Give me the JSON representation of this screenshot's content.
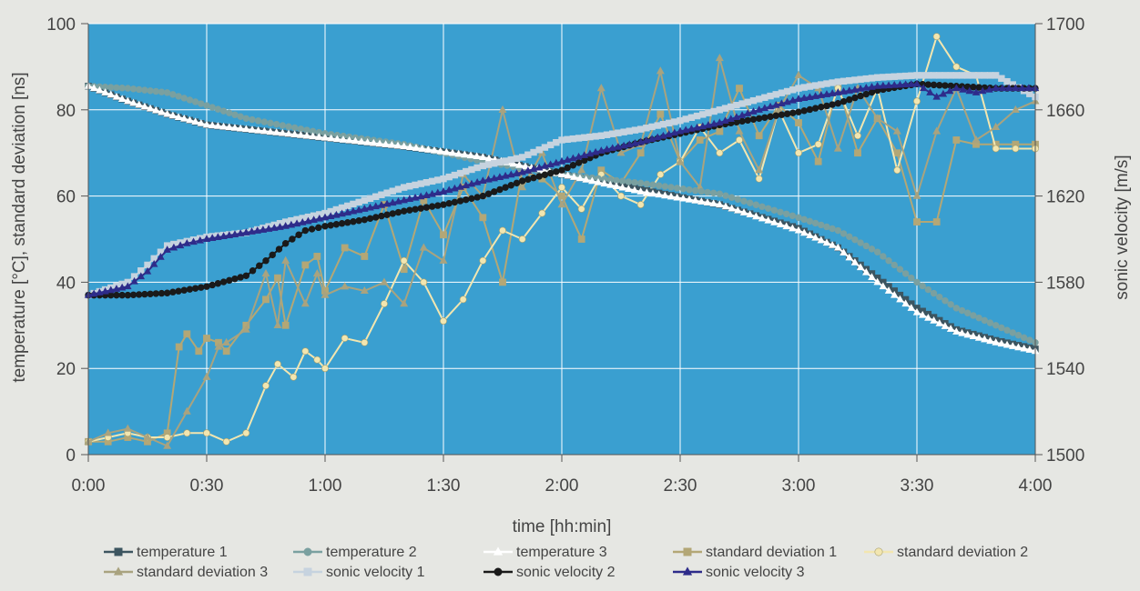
{
  "chart_data": {
    "type": "line",
    "xlabel": "time [hh:min]",
    "ylabel_left": "temperature [°C], standard deviation [ns]",
    "ylabel_right": "sonic velocity [m/s]",
    "x_ticks": [
      "0:00",
      "0:30",
      "1:00",
      "1:30",
      "2:00",
      "2:30",
      "3:00",
      "3:30",
      "4:00"
    ],
    "x_range_minutes": [
      0,
      240
    ],
    "ylim_left": [
      0,
      100
    ],
    "y_ticks_left": [
      0,
      20,
      40,
      60,
      80,
      100
    ],
    "ylim_right": [
      1500,
      1700
    ],
    "y_ticks_right": [
      1500,
      1540,
      1580,
      1620,
      1660,
      1700
    ],
    "grid": true,
    "plot_background": "#3a9fd0",
    "legend_position": "bottom",
    "series": [
      {
        "name": "temperature 1",
        "axis": "left",
        "color": "#3d5560",
        "marker": "square",
        "x": [
          0,
          10,
          20,
          30,
          40,
          60,
          80,
          100,
          120,
          140,
          160,
          180,
          190,
          200,
          210,
          220,
          230,
          240
        ],
        "y": [
          85.5,
          82,
          79,
          76.5,
          75.5,
          73.5,
          71.5,
          69,
          65,
          61.5,
          58,
          52.5,
          48,
          41,
          34,
          29,
          26.5,
          24.5
        ]
      },
      {
        "name": "temperature 2",
        "axis": "left",
        "color": "#7aa0a0",
        "marker": "circle",
        "x": [
          0,
          10,
          20,
          30,
          40,
          60,
          80,
          100,
          120,
          140,
          160,
          180,
          190,
          200,
          210,
          220,
          230,
          240
        ],
        "y": [
          85.5,
          85,
          84,
          81,
          78,
          74.5,
          72,
          68,
          65,
          63,
          60.5,
          55,
          52,
          47,
          40,
          34,
          30,
          26
        ]
      },
      {
        "name": "temperature 3",
        "axis": "left",
        "color": "#ffffff",
        "marker": "triangle",
        "x": [
          0,
          10,
          20,
          30,
          40,
          60,
          80,
          100,
          120,
          140,
          160,
          180,
          190,
          200,
          210,
          220,
          230,
          240
        ],
        "y": [
          85.5,
          82,
          79,
          76.5,
          75.5,
          73.5,
          71.5,
          69,
          65,
          61,
          58,
          52,
          48,
          40,
          33,
          28.5,
          26,
          24
        ]
      },
      {
        "name": "standard deviation 1",
        "axis": "left",
        "color": "#b3a776",
        "marker": "square",
        "x": [
          0,
          5,
          10,
          15,
          20,
          23,
          25,
          28,
          30,
          33,
          35,
          40,
          45,
          48,
          50,
          55,
          58,
          60,
          65,
          70,
          75,
          80,
          85,
          90,
          95,
          100,
          105,
          110,
          115,
          120,
          125,
          130,
          135,
          140,
          145,
          150,
          155,
          160,
          165,
          170,
          175,
          180,
          185,
          190,
          195,
          200,
          205,
          210,
          215,
          220,
          225,
          230,
          235,
          240
        ],
        "y": [
          3,
          3,
          4,
          3,
          5,
          25,
          28,
          24,
          27,
          26,
          24,
          30,
          36,
          41,
          30,
          44,
          46,
          38,
          48,
          46,
          58,
          43,
          59,
          51,
          62,
          55,
          40,
          66,
          64,
          60,
          50,
          66,
          63,
          70,
          79,
          68,
          73,
          75,
          85,
          74,
          81,
          77,
          68,
          86,
          70,
          78,
          70,
          54,
          54,
          73,
          72,
          72,
          72,
          72
        ]
      },
      {
        "name": "standard deviation 2",
        "axis": "left",
        "color": "#f2e6b0",
        "marker": "circle",
        "x": [
          0,
          5,
          10,
          15,
          20,
          25,
          30,
          35,
          40,
          45,
          48,
          52,
          55,
          58,
          60,
          65,
          70,
          75,
          80,
          85,
          90,
          95,
          100,
          105,
          110,
          115,
          120,
          125,
          130,
          135,
          140,
          145,
          150,
          155,
          160,
          165,
          170,
          175,
          180,
          185,
          190,
          195,
          200,
          205,
          210,
          215,
          220,
          225,
          230,
          235,
          240
        ],
        "y": [
          3,
          4,
          5,
          4,
          4,
          5,
          5,
          3,
          5,
          16,
          21,
          18,
          24,
          22,
          20,
          27,
          26,
          35,
          45,
          40,
          31,
          36,
          45,
          52,
          50,
          56,
          62,
          57,
          65,
          60,
          58,
          65,
          68,
          76,
          70,
          73,
          64,
          80,
          70,
          72,
          85,
          74,
          85,
          66,
          82,
          97,
          90,
          88,
          71,
          71,
          71
        ]
      },
      {
        "name": "standard deviation 3",
        "axis": "left",
        "color": "#a9a37f",
        "marker": "triangle",
        "x": [
          0,
          5,
          10,
          15,
          20,
          25,
          30,
          33,
          35,
          40,
          45,
          48,
          50,
          55,
          58,
          60,
          65,
          70,
          75,
          80,
          85,
          90,
          95,
          100,
          105,
          110,
          115,
          120,
          125,
          130,
          135,
          140,
          145,
          150,
          155,
          160,
          165,
          170,
          175,
          180,
          185,
          190,
          195,
          200,
          205,
          210,
          215,
          220,
          225,
          230,
          235,
          240
        ],
        "y": [
          3,
          5,
          6,
          4,
          2,
          10,
          18,
          25,
          26,
          29,
          42,
          30,
          45,
          35,
          42,
          37,
          39,
          38,
          40,
          35,
          48,
          45,
          65,
          60,
          80,
          62,
          70,
          58,
          66,
          85,
          70,
          72,
          89,
          68,
          62,
          92,
          75,
          66,
          80,
          88,
          85,
          71,
          85,
          78,
          75,
          60,
          75,
          85,
          73,
          76,
          80,
          82
        ]
      },
      {
        "name": "sonic velocity 1",
        "axis": "right",
        "color": "#c6d3df",
        "marker": "square",
        "x": [
          0,
          10,
          15,
          20,
          25,
          30,
          40,
          50,
          60,
          70,
          80,
          90,
          100,
          110,
          120,
          130,
          140,
          150,
          160,
          170,
          180,
          190,
          200,
          210,
          220,
          230,
          240
        ],
        "y": [
          1574,
          1580,
          1588,
          1597,
          1599,
          1601,
          1603,
          1608,
          1612,
          1618,
          1624,
          1628,
          1634,
          1638,
          1646,
          1648,
          1651,
          1655,
          1660,
          1665,
          1670,
          1673,
          1675,
          1676,
          1676,
          1676,
          1666
        ]
      },
      {
        "name": "sonic velocity 2",
        "axis": "right",
        "color": "#1a1a1a",
        "marker": "circle",
        "x": [
          0,
          10,
          20,
          30,
          40,
          45,
          50,
          55,
          60,
          70,
          80,
          90,
          100,
          110,
          120,
          130,
          140,
          150,
          160,
          170,
          180,
          190,
          200,
          210,
          220,
          230,
          240
        ],
        "y": [
          1574,
          1574,
          1575,
          1578,
          1583,
          1590,
          1598,
          1604,
          1606,
          1609,
          1613,
          1616,
          1620,
          1627,
          1632,
          1640,
          1645,
          1649,
          1653,
          1656,
          1659,
          1663,
          1669,
          1672,
          1671,
          1670,
          1670
        ]
      },
      {
        "name": "sonic velocity 3",
        "axis": "right",
        "color": "#2e2c8a",
        "marker": "triangle",
        "x": [
          0,
          10,
          15,
          20,
          25,
          30,
          40,
          50,
          60,
          70,
          80,
          90,
          100,
          110,
          120,
          130,
          140,
          150,
          160,
          170,
          180,
          190,
          200,
          210,
          215,
          220,
          225,
          230,
          235,
          240
        ],
        "y": [
          1574,
          1578,
          1585,
          1595,
          1598,
          1600,
          1603,
          1606,
          1610,
          1614,
          1618,
          1622,
          1627,
          1631,
          1636,
          1641,
          1645,
          1650,
          1654,
          1660,
          1665,
          1668,
          1671,
          1672,
          1666,
          1670,
          1668,
          1670,
          1670,
          1670
        ]
      }
    ]
  }
}
